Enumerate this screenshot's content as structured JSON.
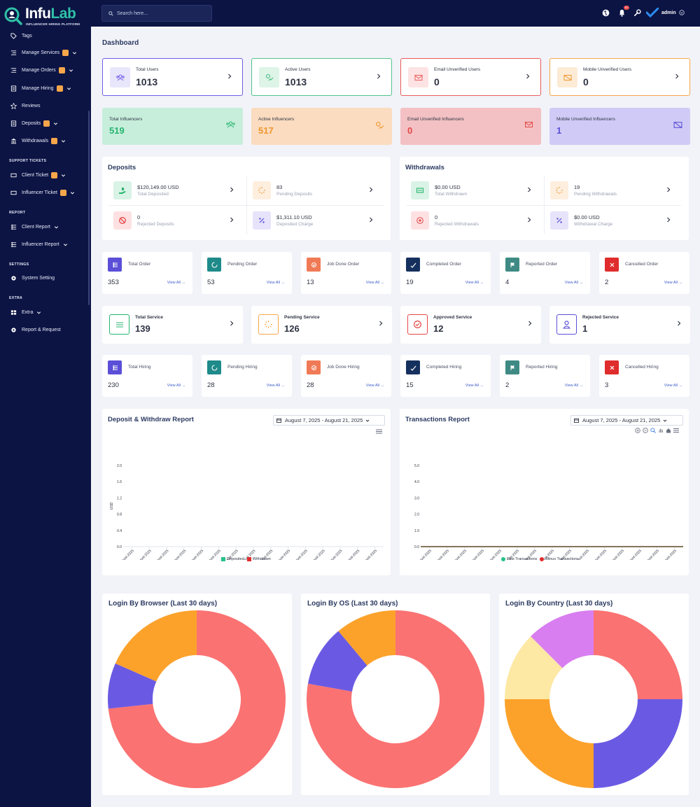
{
  "brand": {
    "name_a": "Infu",
    "name_b": "Lab",
    "tagline": "INFLUENCER HIRING PLATFORM"
  },
  "sidebar": {
    "items": [
      {
        "label": "Tags",
        "icon": "tag-icon"
      },
      {
        "label": "Manage Services",
        "icon": "list-icon",
        "badge": true,
        "chevron": true
      },
      {
        "label": "Manage Orders",
        "icon": "list-icon",
        "badge": true,
        "chevron": true
      },
      {
        "label": "Manage Hiring",
        "icon": "document-icon",
        "badge": true,
        "chevron": true
      },
      {
        "label": "Reviews",
        "icon": "star-icon"
      },
      {
        "label": "Deposits",
        "icon": "document-icon",
        "badge": true,
        "chevron": true
      },
      {
        "label": "Withdrawals",
        "icon": "bank-icon",
        "badge": true,
        "chevron": true
      }
    ],
    "section_support": "SUPPORT TICKETS",
    "support": [
      {
        "label": "Client Ticket",
        "badge": true,
        "chevron": true
      },
      {
        "label": "Influencer Ticket",
        "badge": true,
        "chevron": true
      }
    ],
    "section_report": "REPORT",
    "report": [
      {
        "label": "Client Report",
        "chevron": true
      },
      {
        "label": "Influencer Report",
        "chevron": true
      }
    ],
    "section_settings": "SETTINGS",
    "settings": [
      {
        "label": "System Setting"
      }
    ],
    "section_extra": "EXTRA",
    "extra": [
      {
        "label": "Extra",
        "chevron": true
      },
      {
        "label": "Report & Request"
      }
    ]
  },
  "topbar": {
    "search_placeholder": "Search here...",
    "notif_count": "9+",
    "user": "admin"
  },
  "page_title": "Dashboard",
  "user_stats": [
    {
      "label": "Total Users",
      "value": "1013",
      "border": "#6d5ee8",
      "icon_bg": "#e8e6fb"
    },
    {
      "label": "Active Users",
      "value": "1013",
      "border": "#4fc48a",
      "icon_bg": "#ddf4e7"
    },
    {
      "label": "Email Unverified Users",
      "value": "0",
      "border": "#ea5b5b",
      "icon_bg": "#fde3e3"
    },
    {
      "label": "Mobile Unverified Users",
      "value": "0",
      "border": "#f7a64a",
      "icon_bg": "#fdebd6"
    }
  ],
  "influencer_stats": [
    {
      "label": "Total Influencers",
      "value": "519",
      "bg": "#c7eedb",
      "color": "#27b56f"
    },
    {
      "label": "Active Influencers",
      "value": "517",
      "bg": "#fbdcc0",
      "color": "#f0952c"
    },
    {
      "label": "Email Unverified Influencers",
      "value": "0",
      "bg": "#f3c1c4",
      "color": "#e44747"
    },
    {
      "label": "Mobile Unverified Influencers",
      "value": "1",
      "bg": "#cfcbf6",
      "color": "#5b4fd8"
    }
  ],
  "deposits": {
    "title": "Deposits",
    "items": [
      {
        "amount": "$120,149.00 USD",
        "label": "Total Deposited"
      },
      {
        "amount": "83",
        "label": "Pending Deposits"
      },
      {
        "amount": "0",
        "label": "Rejected Deposits"
      },
      {
        "amount": "$1,311.10 USD",
        "label": "Deposited Charge"
      }
    ]
  },
  "withdrawals": {
    "title": "Withdrawals",
    "items": [
      {
        "amount": "$0.00 USD",
        "label": "Total Withdrawn"
      },
      {
        "amount": "19",
        "label": "Pending Withdrawals"
      },
      {
        "amount": "0",
        "label": "Rejected Withdrawals"
      },
      {
        "amount": "$0.00 USD",
        "label": "Withdrawal Charge"
      }
    ]
  },
  "orders": [
    {
      "label": "Total Order",
      "value": "353",
      "color": "#5b4fd8"
    },
    {
      "label": "Pending Order",
      "value": "53",
      "color": "#1f8a8a"
    },
    {
      "label": "Job Done Order",
      "value": "13",
      "color": "#f07a55"
    },
    {
      "label": "Completed Order",
      "value": "19",
      "color": "#16305e"
    },
    {
      "label": "Reported Order",
      "value": "4",
      "color": "#3f8a84"
    },
    {
      "label": "Cancelled Order",
      "value": "2",
      "color": "#e02c2c"
    }
  ],
  "view_all": "View All",
  "services": [
    {
      "label": "Total Service",
      "value": "139",
      "color": "#27b56f"
    },
    {
      "label": "Pending Service",
      "value": "126",
      "color": "#f7a64a"
    },
    {
      "label": "Approved Service",
      "value": "12",
      "color": "#e44747"
    },
    {
      "label": "Rejected Service",
      "value": "1",
      "color": "#5b4fd8"
    }
  ],
  "hiring": [
    {
      "label": "Total Hiring",
      "value": "230",
      "color": "#5b4fd8"
    },
    {
      "label": "Pending Hiring",
      "value": "28",
      "color": "#1f8a8a"
    },
    {
      "label": "Job Done Hiring",
      "value": "28",
      "color": "#f07a55"
    },
    {
      "label": "Completed Hiring",
      "value": "15",
      "color": "#16305e"
    },
    {
      "label": "Reported Hiring",
      "value": "2",
      "color": "#3f8a84"
    },
    {
      "label": "Cancelled Hiring",
      "value": "3",
      "color": "#e02c2c"
    }
  ],
  "date_range": "August 7, 2025 - August 21, 2025",
  "chart_data": [
    {
      "type": "bar",
      "title": "Deposit & Withdraw Report",
      "ylabel": "USD",
      "ylim": [
        0,
        2.0
      ],
      "yticks": [
        "0.0",
        "0.4",
        "0.8",
        "1.2",
        "1.6",
        "2.0"
      ],
      "categories": [
        "07-August-2025",
        "08-August-2025",
        "09-August-2025",
        "10-August-2025",
        "11-August-2025",
        "12-August-2025",
        "13-August-2025",
        "14-August-2025",
        "15-August-2025",
        "16-August-2025",
        "17-August-2025",
        "18-August-2025",
        "19-August-2025",
        "20-August-2025",
        "21-August-2025"
      ],
      "series": [
        {
          "name": "Deposited",
          "color": "#27c08a",
          "values": [
            0,
            0,
            0,
            0,
            0,
            0,
            0,
            0,
            0,
            0,
            0,
            0,
            0,
            0,
            0
          ]
        },
        {
          "name": "Withdrawn",
          "color": "#e02c2c",
          "values": [
            0,
            0,
            0,
            0,
            0,
            0,
            0,
            0,
            0,
            0,
            0,
            0,
            0,
            0,
            0
          ]
        }
      ],
      "legend": "bottom"
    },
    {
      "type": "line",
      "title": "Transactions Report",
      "ylim": [
        0,
        5.0
      ],
      "yticks": [
        "0.0",
        "1.0",
        "2.0",
        "3.0",
        "4.0",
        "5.0"
      ],
      "categories": [
        "gust-2025",
        "08-August-2025",
        "09-August-2025",
        "10-August-2025",
        "11-August-2025",
        "12-August-2025",
        "13-August-2025",
        "14-August-2025",
        "15-August-2025",
        "16-August-2025",
        "17-August-2025",
        "18-August-2025",
        "19-August-2025",
        "20-August-2025",
        "21-August-2025"
      ],
      "series": [
        {
          "name": "Plus Transactions",
          "color": "#27c08a",
          "values": [
            0,
            0,
            0,
            0,
            0,
            0,
            0,
            0,
            0,
            0,
            0,
            0,
            0,
            0,
            0
          ]
        },
        {
          "name": "Minus Transactions",
          "color": "#e02c2c",
          "values": [
            0,
            0,
            0,
            0,
            0,
            0,
            0,
            0,
            0,
            0,
            0,
            0,
            0,
            0,
            0
          ]
        }
      ],
      "legend": "bottom"
    },
    {
      "type": "pie",
      "title": "Login By Browser (Last 30 days)",
      "values": [
        0.733,
        0.083,
        0.184
      ],
      "colors": [
        "#fb7272",
        "#6a5ae3",
        "#fca22b"
      ]
    },
    {
      "type": "pie",
      "title": "Login By OS (Last 30 days)",
      "values": [
        0.778,
        0.111,
        0.111
      ],
      "colors": [
        "#fb7272",
        "#6a5ae3",
        "#fca22b"
      ]
    },
    {
      "type": "pie",
      "title": "Login By Country (Last 30 days)",
      "values": [
        0.25,
        0.25,
        0.25,
        0.125,
        0.125
      ],
      "colors": [
        "#fb7272",
        "#6a5ae3",
        "#fca22b",
        "#fde8a4",
        "#d87ef0"
      ]
    }
  ]
}
